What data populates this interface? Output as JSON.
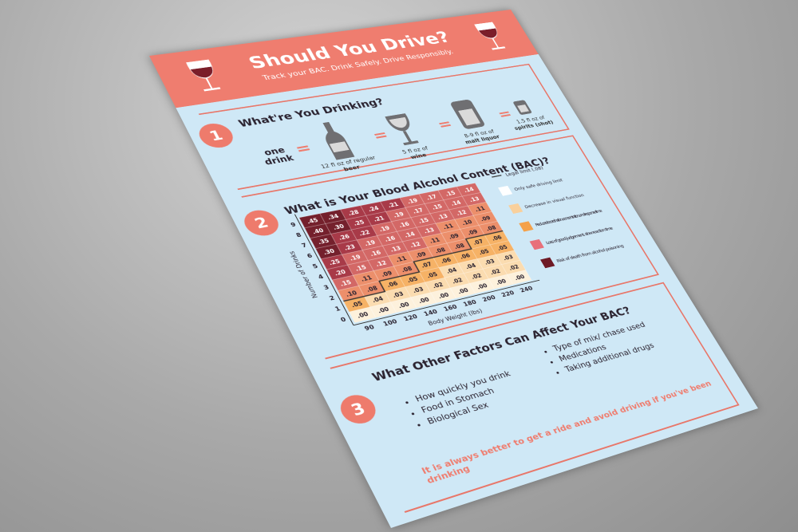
{
  "header": {
    "title": "Should You Drive?",
    "subtitle": "Track your BAC. Drink Safely. Drive Responsibly."
  },
  "section1": {
    "number": "1",
    "title": "What're You Drinking?",
    "one_drink": "one drink",
    "equals": "=",
    "items": [
      {
        "text": "12 fl oz of regular",
        "bold": "beer"
      },
      {
        "text": "5 fl oz of",
        "bold": "wine"
      },
      {
        "text": "8-9 fl oz of",
        "bold": "malt liquor"
      },
      {
        "text": "1.5 fl oz of",
        "bold": "spirits (shot)"
      }
    ]
  },
  "section2": {
    "number": "2",
    "title": "What is Your Blood Alcohol Content (BAC)?",
    "y_label": "Number of Drinks",
    "x_label": "Body Weight (lbs)",
    "y_ticks": [
      0,
      1,
      2,
      3,
      4,
      5,
      6,
      7,
      8,
      9
    ],
    "x_ticks": [
      90,
      100,
      120,
      140,
      160,
      180,
      200,
      220,
      240
    ],
    "rows": [
      [
        ".00",
        ".00",
        ".00",
        ".00",
        ".00",
        ".00",
        ".00",
        ".00",
        ".00"
      ],
      [
        ".05",
        ".04",
        ".03",
        ".03",
        ".02",
        ".02",
        ".02",
        ".02",
        ".02"
      ],
      [
        ".10",
        ".08",
        ".06",
        ".05",
        ".05",
        ".04",
        ".04",
        ".03",
        ".03"
      ],
      [
        ".15",
        ".11",
        ".09",
        ".08",
        ".07",
        ".06",
        ".06",
        ".05",
        ".05"
      ],
      [
        ".20",
        ".15",
        ".12",
        ".11",
        ".09",
        ".08",
        ".08",
        ".07",
        ".06"
      ],
      [
        ".25",
        ".19",
        ".16",
        ".13",
        ".12",
        ".11",
        ".09",
        ".09",
        ".08"
      ],
      [
        ".30",
        ".23",
        ".19",
        ".16",
        ".14",
        ".13",
        ".11",
        ".10",
        ".09"
      ],
      [
        ".35",
        ".26",
        ".22",
        ".19",
        ".16",
        ".15",
        ".13",
        ".12",
        ".11"
      ],
      [
        ".40",
        ".30",
        ".25",
        ".21",
        ".19",
        ".17",
        ".15",
        ".14",
        ".13"
      ],
      [
        ".45",
        ".34",
        ".28",
        ".24",
        ".21",
        ".19",
        ".17",
        ".15",
        ".14"
      ]
    ],
    "legend": [
      "Legal limit (.08)",
      "Only safe driving limit",
      "Decrease in visual function",
      "Reduced coordination, concentration, and response time",
      "Loss of good judgement, slow reaction time",
      "Risk of death from alcohol poisoning"
    ]
  },
  "section3": {
    "number": "3",
    "title": "What Other Factors Can Affect Your BAC?",
    "factors": [
      "How quickly you drink",
      "Food in Stomach",
      "Biological Sex",
      "Type of mix/ chase used",
      "Medications",
      "Taking additional drugs"
    ],
    "note": "It is always better to get a ride and avoid driving if you've been drinking"
  }
}
